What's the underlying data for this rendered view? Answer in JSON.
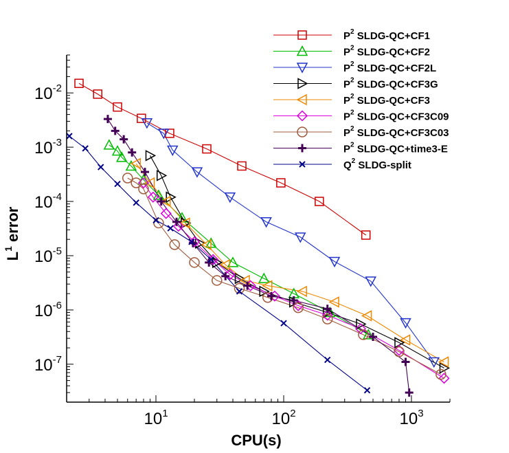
{
  "chart_data": {
    "type": "line",
    "title": "",
    "xlabel": "CPU(s)",
    "ylabel_base": "L",
    "ylabel_sup": "1",
    "ylabel_rest": " error",
    "xscale": "log",
    "yscale": "log",
    "xlim": [
      2,
      2000
    ],
    "ylim": [
      2e-08,
      0.05
    ],
    "legend_position": "top-right",
    "x_ticks": [
      {
        "value": 10,
        "base": "10",
        "exp": "1"
      },
      {
        "value": 100,
        "base": "10",
        "exp": "2"
      },
      {
        "value": 1000,
        "base": "10",
        "exp": "3"
      }
    ],
    "y_ticks": [
      {
        "value": 0.01,
        "base": "10",
        "exp": "-2"
      },
      {
        "value": 0.001,
        "base": "10",
        "exp": "-3"
      },
      {
        "value": 0.0001,
        "base": "10",
        "exp": "-4"
      },
      {
        "value": 1e-05,
        "base": "10",
        "exp": "-5"
      },
      {
        "value": 1e-06,
        "base": "10",
        "exp": "-6"
      },
      {
        "value": 1e-07,
        "base": "10",
        "exp": "-7"
      }
    ],
    "series": [
      {
        "name_base": "P",
        "name_sup": "2",
        "name_rest": " SLDG-QC+CF1",
        "color": "#cc0000",
        "marker": "square",
        "x": [
          2.5,
          3.5,
          5,
          7.7,
          12.8,
          25,
          47,
          95,
          190,
          440
        ],
        "y": [
          0.015,
          0.0095,
          0.0055,
          0.0034,
          0.0018,
          0.00093,
          0.00045,
          0.00022,
          0.0001,
          2.4e-05
        ]
      },
      {
        "name_base": "P",
        "name_sup": "2",
        "name_rest": " SLDG-QC+CF2",
        "color": "#00bb00",
        "marker": "triangle-up",
        "x": [
          4.3,
          5,
          5.4,
          6.4,
          8,
          10.5,
          16,
          27,
          40,
          70,
          120,
          230,
          460
        ],
        "y": [
          0.0011,
          0.00085,
          0.00065,
          0.00045,
          0.00025,
          0.00013,
          5e-05,
          1.7e-05,
          7.5e-06,
          3.8e-06,
          2e-06,
          9e-07,
          3.5e-07
        ]
      },
      {
        "name_base": "P",
        "name_sup": "2",
        "name_rest": " SLDG-QC+CF2L",
        "color": "#2233cc",
        "marker": "triangle-down",
        "x": [
          8.5,
          11.5,
          13.5,
          21,
          38,
          73,
          135,
          250,
          480,
          900,
          1500
        ],
        "y": [
          0.0028,
          0.0018,
          0.00088,
          0.00035,
          0.00012,
          4.2e-05,
          2.2e-05,
          7.8e-06,
          3.4e-06,
          5.8e-07,
          1.1e-07
        ]
      },
      {
        "name_base": "P",
        "name_sup": "2",
        "name_rest": " SLDG-QC+CF3G",
        "color": "#000000",
        "marker": "triangle-right",
        "x": [
          9,
          11,
          13,
          17,
          22,
          30,
          45,
          70,
          120,
          220,
          400,
          800,
          1800
        ],
        "y": [
          0.0007,
          0.0003,
          0.00012,
          4e-05,
          1.7e-05,
          7.5e-06,
          3.8e-06,
          2.2e-06,
          1.4e-06,
          9e-07,
          5.5e-07,
          2.5e-07,
          8.5e-08
        ]
      },
      {
        "name_base": "P",
        "name_sup": "2",
        "name_rest": " SLDG-QC+CF3",
        "color": "#ee8800",
        "marker": "triangle-left",
        "x": [
          7,
          9,
          12,
          17,
          25,
          35,
          50,
          75,
          140,
          250,
          450,
          900,
          1800
        ],
        "y": [
          0.0005,
          0.00022,
          0.0001,
          4e-05,
          1.6e-05,
          6.8e-06,
          3.5e-06,
          2.8e-06,
          2.2e-06,
          1.4e-06,
          7.8e-07,
          2.8e-07,
          1.1e-07
        ]
      },
      {
        "name_base": "P",
        "name_sup": "2",
        "name_rest": " SLDG-QC+CF3C09",
        "color": "#dd00dd",
        "marker": "diamond",
        "x": [
          8,
          9.5,
          12,
          15,
          20,
          28,
          38,
          55,
          85,
          130,
          220,
          400,
          800,
          1800
        ],
        "y": [
          0.00022,
          0.00012,
          6e-05,
          3.5e-05,
          1.8e-05,
          8.5e-06,
          4.5e-06,
          2.8e-06,
          1.8e-06,
          1.2e-06,
          8e-07,
          4.5e-07,
          1.8e-07,
          5.5e-08
        ]
      },
      {
        "name_base": "P",
        "name_sup": "2",
        "name_rest": " SLDG-QC+CF3C03",
        "color": "#a05a3c",
        "marker": "circle",
        "x": [
          6,
          7,
          8,
          10.5,
          14,
          20,
          30,
          45,
          75,
          130,
          220,
          420,
          800,
          1700
        ],
        "y": [
          0.00027,
          0.00022,
          0.00017,
          4e-05,
          1.6e-05,
          7.5e-06,
          3.5e-06,
          2.5e-06,
          1.7e-06,
          1.1e-06,
          6.8e-07,
          3.5e-07,
          1.7e-07,
          6.5e-08
        ]
      },
      {
        "name_base": "P",
        "name_sup": "2",
        "name_rest": " SLDG-QC+time3-E",
        "color": "#440055",
        "marker": "plus",
        "x": [
          4.2,
          4.8,
          5.6,
          6.5,
          8.2,
          11,
          14.5,
          19.5,
          26,
          35,
          52,
          80,
          120,
          220,
          500,
          900,
          960
        ],
        "y": [
          0.0033,
          0.002,
          0.0014,
          0.0008,
          0.00035,
          0.0001,
          4.2e-05,
          1.7e-05,
          7.5e-06,
          4.2e-06,
          2.8e-06,
          1.8e-06,
          1.5e-06,
          1.05e-06,
          3.2e-07,
          1.1e-07,
          3e-08
        ]
      },
      {
        "name_base": "Q",
        "name_sup": "2",
        "name_rest": " SLDG-split",
        "color": "#000088",
        "marker": "cross",
        "x": [
          2.1,
          2.8,
          3.7,
          5,
          7,
          10,
          13,
          19,
          27,
          45,
          100,
          220,
          450
        ],
        "y": [
          0.0016,
          0.00095,
          0.00043,
          0.00021,
          9.5e-05,
          4.5e-05,
          3.2e-05,
          1.8e-05,
          8.5e-06,
          2.2e-06,
          5.7e-07,
          1.2e-07,
          3.3e-08
        ]
      }
    ]
  }
}
